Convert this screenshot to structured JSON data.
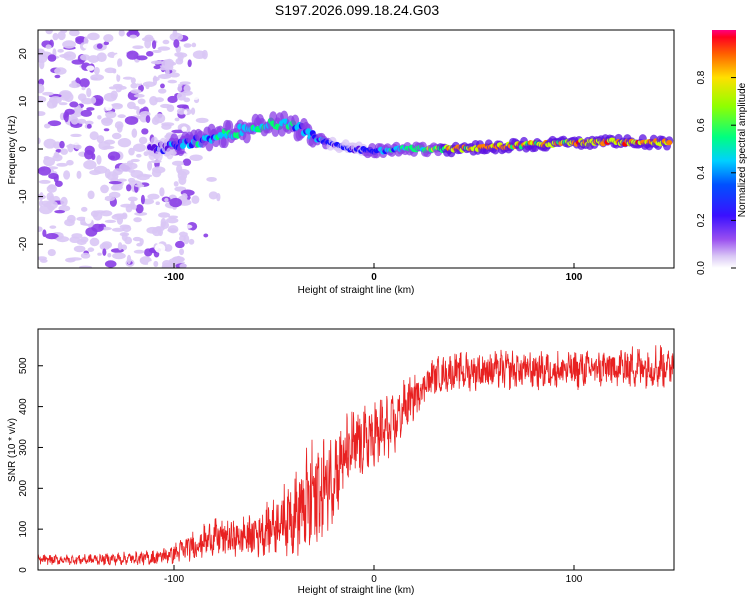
{
  "title": "S197.2026.099.18.24.G03",
  "colors": {
    "snr_line": "#e82020",
    "plot_border": "#000000",
    "colormap": [
      "#ffffff",
      "#d9c6f5",
      "#8a3ee6",
      "#5a10e0",
      "#1a10ff",
      "#00c8ff",
      "#00ff70",
      "#c8ff00",
      "#ff8000",
      "#ff0000"
    ]
  },
  "chart_data": [
    {
      "type": "heatmap",
      "name": "spectrogram",
      "xlabel": "Height of straight line (km)",
      "ylabel": "Frequency (Hz)",
      "xlim": [
        -168,
        150
      ],
      "ylim": [
        -25,
        25
      ],
      "x_ticks": [
        "-100",
        "0",
        "100"
      ],
      "x_tick_values": [
        -100,
        0,
        100
      ],
      "y_ticks": [
        "20",
        "10",
        "0",
        "-10",
        "-20"
      ],
      "y_tick_values": [
        20,
        10,
        0,
        -10,
        -20
      ],
      "colorbar": {
        "label": "Normalized spectral amplitude",
        "range": [
          0,
          1
        ],
        "ticks": [
          "0.0",
          "0.2",
          "0.4",
          "0.6",
          "0.8"
        ],
        "tick_values": [
          0.0,
          0.2,
          0.4,
          0.6,
          0.8
        ]
      },
      "ridge": {
        "x": [
          -110,
          -100,
          -90,
          -80,
          -70,
          -60,
          -50,
          -40,
          -30,
          -20,
          -10,
          0,
          10,
          20,
          40,
          60,
          80,
          100,
          120,
          150
        ],
        "y": [
          0,
          0.5,
          1.5,
          2.5,
          3.5,
          4.5,
          5.5,
          5,
          2.5,
          1,
          0,
          -0.5,
          0,
          0,
          0,
          0.5,
          1,
          1.3,
          1.5,
          1.3
        ],
        "amplitude": [
          0.35,
          0.5,
          0.6,
          0.6,
          0.65,
          0.65,
          0.7,
          0.6,
          0.55,
          0.45,
          0.45,
          0.5,
          0.6,
          0.7,
          0.85,
          0.9,
          0.85,
          0.9,
          0.95,
          0.9
        ]
      }
    },
    {
      "type": "line",
      "name": "snr",
      "xlabel": "Height of straight line (km)",
      "ylabel": "SNR (10 * v/v)",
      "xlim": [
        -168,
        150
      ],
      "ylim": [
        0,
        590
      ],
      "x_ticks": [
        "-100",
        "0",
        "100"
      ],
      "x_tick_values": [
        -100,
        0,
        100
      ],
      "y_ticks": [
        "0",
        "100",
        "200",
        "300",
        "400",
        "500"
      ],
      "y_tick_values": [
        0,
        100,
        200,
        300,
        400,
        500
      ],
      "series": [
        {
          "name": "SNR",
          "x": [
            -168,
            -150,
            -130,
            -110,
            -100,
            -90,
            -80,
            -70,
            -60,
            -50,
            -40,
            -35,
            -30,
            -25,
            -20,
            -15,
            -10,
            -5,
            0,
            5,
            10,
            15,
            20,
            25,
            30,
            40,
            60,
            80,
            100,
            120,
            140,
            150
          ],
          "y": [
            25,
            25,
            27,
            30,
            40,
            60,
            80,
            78,
            85,
            110,
            140,
            150,
            175,
            200,
            240,
            270,
            300,
            310,
            325,
            340,
            350,
            400,
            420,
            455,
            475,
            485,
            490,
            490,
            490,
            495,
            500,
            500
          ],
          "noise_amplitude": [
            10,
            10,
            12,
            15,
            20,
            30,
            35,
            40,
            45,
            55,
            80,
            100,
            140,
            110,
            90,
            80,
            80,
            80,
            80,
            70,
            60,
            50,
            45,
            40,
            35,
            38,
            38,
            38,
            38,
            40,
            45,
            45
          ]
        }
      ]
    }
  ]
}
